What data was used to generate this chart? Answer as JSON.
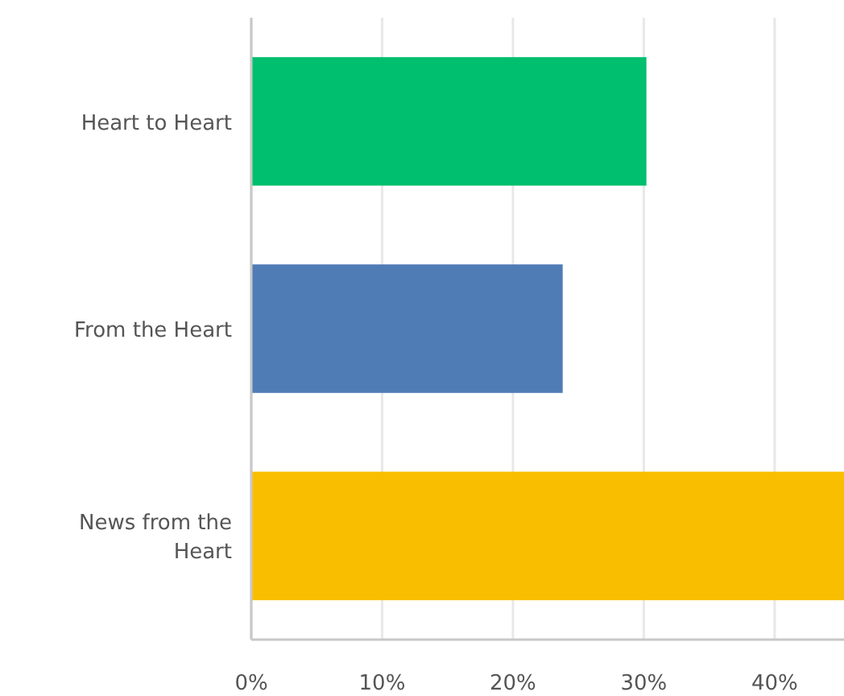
{
  "chart_data": {
    "type": "bar",
    "orientation": "horizontal",
    "categories": [
      "Heart to Heart",
      "From the Heart",
      "News from the Heart"
    ],
    "values": [
      30.2,
      23.8,
      45.3
    ],
    "colors": [
      "#00bf6f",
      "#507cb6",
      "#f9be00"
    ],
    "xlim": [
      0,
      45.3
    ],
    "xticks": [
      {
        "value": 0,
        "label": "0%"
      },
      {
        "value": 10,
        "label": "10%"
      },
      {
        "value": 20,
        "label": "20%"
      },
      {
        "value": 30,
        "label": "30%"
      },
      {
        "value": 40,
        "label": "40%"
      }
    ],
    "grid": "x"
  }
}
